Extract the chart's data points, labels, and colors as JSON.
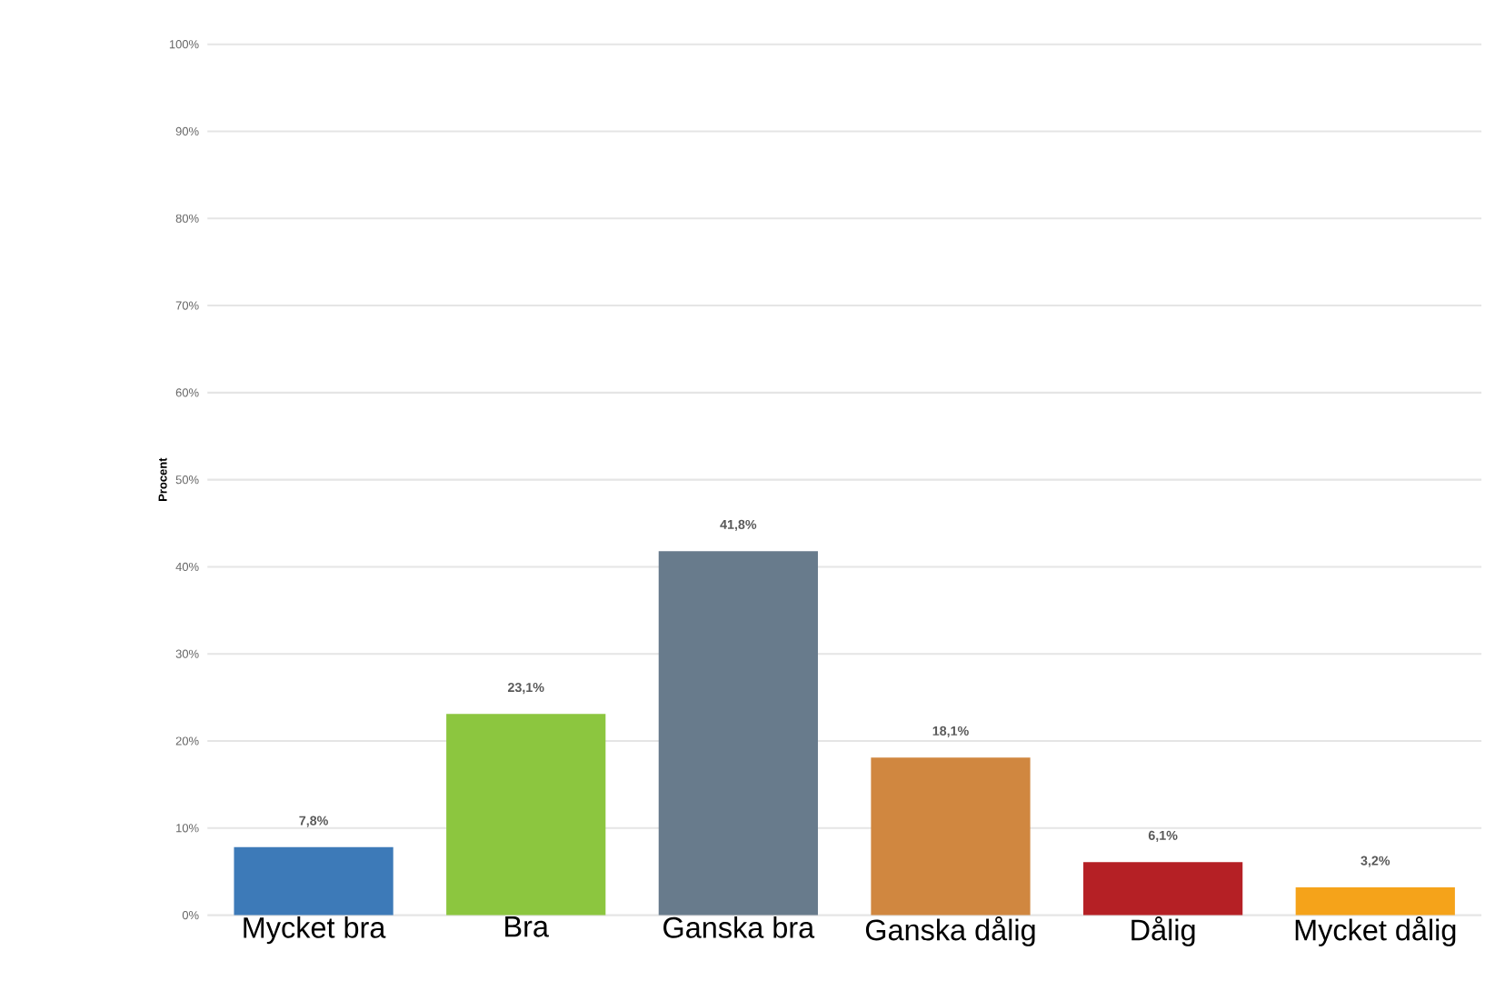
{
  "chart_data": {
    "type": "bar",
    "ylabel": "Procent",
    "categories": [
      "Mycket bra",
      "Bra",
      "Ganska bra",
      "Ganska dålig",
      "Dålig",
      "Mycket dålig"
    ],
    "values": [
      7.8,
      23.1,
      41.8,
      18.1,
      6.1,
      3.2
    ],
    "value_labels": [
      "7,8%",
      "23,1%",
      "41,8%",
      "18,1%",
      "6,1%",
      "3,2%"
    ],
    "colors": [
      "#3d7ab8",
      "#8cc63f",
      "#687b8c",
      "#d08740",
      "#b52025",
      "#f5a31a"
    ],
    "ylim": [
      0,
      100
    ],
    "yticks": [
      {
        "value": 0,
        "label": "0%"
      },
      {
        "value": 10,
        "label": "10%"
      },
      {
        "value": 20,
        "label": "20%"
      },
      {
        "value": 30,
        "label": "30%"
      },
      {
        "value": 40,
        "label": "40%"
      },
      {
        "value": 50,
        "label": "50%"
      },
      {
        "value": 60,
        "label": "60%"
      },
      {
        "value": 70,
        "label": "70%"
      },
      {
        "value": 80,
        "label": "80%"
      },
      {
        "value": 90,
        "label": "90%"
      },
      {
        "value": 100,
        "label": "100%"
      }
    ],
    "grid": "y"
  }
}
